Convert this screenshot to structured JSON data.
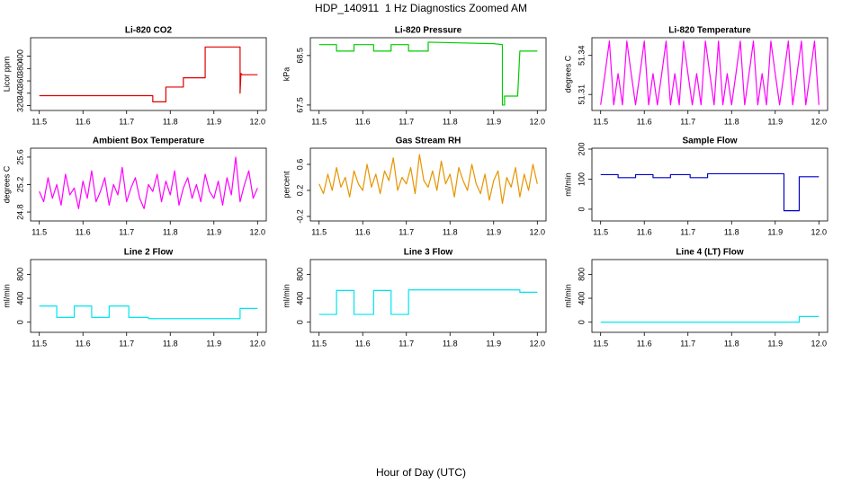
{
  "title": "HDP_140911  1 Hz Diagnostics Zoomed AM",
  "xlabel": "Hour of Day (UTC)",
  "chart_data": [
    {
      "type": "line",
      "title": "Li-820 CO2",
      "ylabel": "Licor ppm",
      "color": "#dd0000",
      "x": [
        11.5,
        11.76,
        11.76,
        11.79,
        11.79,
        11.83,
        11.83,
        11.88,
        11.88,
        11.96,
        11.96,
        11.962,
        11.965,
        12.0
      ],
      "values": [
        336,
        336,
        326,
        326,
        350,
        350,
        365,
        365,
        415,
        415,
        340,
        372,
        370,
        370
      ],
      "xlim": [
        11.48,
        12.02
      ],
      "xticks": [
        11.5,
        11.6,
        11.7,
        11.8,
        11.9,
        {
          "value": 12,
          "label": "12.0"
        }
      ],
      "ylim": [
        312,
        430
      ],
      "yticks": [
        320,
        340,
        360,
        380,
        400
      ]
    },
    {
      "type": "line",
      "title": "Li-820 Pressure",
      "ylabel": "kPa",
      "color": "#00cc00",
      "x": [
        11.5,
        11.54,
        11.54,
        11.58,
        11.58,
        11.625,
        11.625,
        11.665,
        11.665,
        11.705,
        11.705,
        11.75,
        11.75,
        11.9,
        11.92,
        11.92,
        11.925,
        11.925,
        11.955,
        11.96,
        12.0
      ],
      "values": [
        68.72,
        68.72,
        68.59,
        68.59,
        68.72,
        68.72,
        68.59,
        68.59,
        68.72,
        68.72,
        68.59,
        68.59,
        68.77,
        68.74,
        68.72,
        67.5,
        67.5,
        67.68,
        67.68,
        68.59,
        68.59
      ],
      "xlim": [
        11.48,
        12.02
      ],
      "xticks": [
        11.5,
        11.6,
        11.7,
        11.8,
        11.9,
        {
          "value": 12,
          "label": "12.0"
        }
      ],
      "ylim": [
        67.39,
        68.86
      ],
      "yticks": [
        67.5,
        68.5
      ]
    },
    {
      "type": "line",
      "title": "Li-820 Temperature",
      "ylabel": "degrees C",
      "color": "#ff00ff",
      "x": [
        11.5,
        11.51,
        11.52,
        11.53,
        11.54,
        11.55,
        11.56,
        11.57,
        11.58,
        11.59,
        11.6,
        11.61,
        11.62,
        11.63,
        11.64,
        11.65,
        11.66,
        11.67,
        11.68,
        11.69,
        11.7,
        11.71,
        11.72,
        11.73,
        11.74,
        11.75,
        11.76,
        11.77,
        11.78,
        11.79,
        11.8,
        11.81,
        11.82,
        11.83,
        11.84,
        11.85,
        11.86,
        11.87,
        11.88,
        11.89,
        11.9,
        11.91,
        11.92,
        11.93,
        11.94,
        11.95,
        11.96,
        11.97,
        11.98,
        11.99,
        12.0
      ],
      "values": [
        51.302,
        51.326,
        51.351,
        51.302,
        51.326,
        51.302,
        51.351,
        51.326,
        51.302,
        51.326,
        51.351,
        51.302,
        51.326,
        51.302,
        51.326,
        51.351,
        51.302,
        51.326,
        51.302,
        51.351,
        51.326,
        51.302,
        51.326,
        51.302,
        51.351,
        51.326,
        51.302,
        51.351,
        51.302,
        51.326,
        51.302,
        51.326,
        51.351,
        51.302,
        51.326,
        51.351,
        51.302,
        51.326,
        51.302,
        51.351,
        51.326,
        51.302,
        51.326,
        51.351,
        51.302,
        51.326,
        51.351,
        51.302,
        51.326,
        51.351,
        51.302
      ],
      "xlim": [
        11.48,
        12.02
      ],
      "xticks": [
        11.5,
        11.6,
        11.7,
        11.8,
        11.9,
        {
          "value": 12,
          "label": "12.0"
        }
      ],
      "ylim": [
        51.2977,
        51.3536
      ],
      "yticks": [
        51.31,
        51.34
      ]
    },
    {
      "type": "line",
      "title": "Ambient Box Temperature",
      "ylabel": "degrees C",
      "color": "#ff00ff",
      "x": [
        11.5,
        11.51,
        11.52,
        11.53,
        11.54,
        11.55,
        11.56,
        11.57,
        11.58,
        11.59,
        11.6,
        11.61,
        11.62,
        11.63,
        11.64,
        11.65,
        11.66,
        11.67,
        11.68,
        11.69,
        11.7,
        11.71,
        11.72,
        11.73,
        11.74,
        11.75,
        11.76,
        11.77,
        11.78,
        11.79,
        11.8,
        11.81,
        11.82,
        11.83,
        11.84,
        11.85,
        11.86,
        11.87,
        11.88,
        11.89,
        11.9,
        11.91,
        11.92,
        11.93,
        11.94,
        11.95,
        11.96,
        11.97,
        11.98,
        11.99,
        12.0
      ],
      "values": [
        25.1,
        24.95,
        25.3,
        25.0,
        25.2,
        24.9,
        25.35,
        25.05,
        25.15,
        24.85,
        25.25,
        25.0,
        25.4,
        24.95,
        25.1,
        25.3,
        24.9,
        25.2,
        25.05,
        25.45,
        24.95,
        25.15,
        25.3,
        25.0,
        24.85,
        25.2,
        25.1,
        25.35,
        24.95,
        25.25,
        25.05,
        25.4,
        24.9,
        25.15,
        25.3,
        25.0,
        25.2,
        24.95,
        25.35,
        25.1,
        25.0,
        25.25,
        24.9,
        25.3,
        25.05,
        25.6,
        24.95,
        25.2,
        25.4,
        25.0,
        25.15
      ],
      "xlim": [
        11.48,
        12.02
      ],
      "xticks": [
        11.5,
        11.6,
        11.7,
        11.8,
        11.9,
        {
          "value": 12,
          "label": "12.0"
        }
      ],
      "ylim": [
        24.67,
        25.73
      ],
      "yticks": [
        24.8,
        25.2,
        25.6
      ]
    },
    {
      "type": "line",
      "title": "Gas Stream RH",
      "ylabel": "percent",
      "color": "#e69500",
      "x": [
        11.5,
        11.51,
        11.52,
        11.53,
        11.54,
        11.55,
        11.56,
        11.57,
        11.58,
        11.59,
        11.6,
        11.61,
        11.62,
        11.63,
        11.64,
        11.65,
        11.66,
        11.67,
        11.68,
        11.69,
        11.7,
        11.71,
        11.72,
        11.73,
        11.74,
        11.75,
        11.76,
        11.77,
        11.78,
        11.79,
        11.8,
        11.81,
        11.82,
        11.83,
        11.84,
        11.85,
        11.86,
        11.87,
        11.88,
        11.89,
        11.9,
        11.91,
        11.92,
        11.93,
        11.94,
        11.95,
        11.96,
        11.97,
        11.98,
        11.99,
        12.0
      ],
      "values": [
        0.3,
        0.15,
        0.45,
        0.2,
        0.55,
        0.25,
        0.4,
        0.1,
        0.5,
        0.3,
        0.2,
        0.6,
        0.25,
        0.45,
        0.15,
        0.5,
        0.35,
        0.7,
        0.2,
        0.4,
        0.3,
        0.55,
        0.15,
        0.75,
        0.35,
        0.25,
        0.5,
        0.2,
        0.65,
        0.3,
        0.45,
        0.1,
        0.55,
        0.35,
        0.2,
        0.6,
        0.3,
        0.15,
        0.45,
        0.05,
        0.35,
        0.5,
        0.0,
        0.4,
        0.25,
        0.55,
        0.1,
        0.45,
        0.2,
        0.6,
        0.3
      ],
      "xlim": [
        11.48,
        12.02
      ],
      "xticks": [
        11.5,
        11.6,
        11.7,
        11.8,
        11.9,
        {
          "value": 12,
          "label": "12.0"
        }
      ],
      "ylim": [
        -0.269,
        0.848
      ],
      "yticks": [
        -0.2,
        0.2,
        0.6
      ]
    },
    {
      "type": "line",
      "title": "Sample Flow",
      "ylabel": "ml/min",
      "color": "#0000cc",
      "x": [
        11.5,
        11.54,
        11.54,
        11.58,
        11.58,
        11.62,
        11.62,
        11.66,
        11.66,
        11.705,
        11.705,
        11.745,
        11.745,
        11.92,
        11.92,
        11.955,
        11.955,
        12.0
      ],
      "values": [
        115,
        115,
        105,
        105,
        115,
        115,
        105,
        105,
        115,
        115,
        105,
        105,
        118,
        118,
        -5,
        -5,
        108,
        108
      ],
      "xlim": [
        11.48,
        12.02
      ],
      "xticks": [
        11.5,
        11.6,
        11.7,
        11.8,
        11.9,
        {
          "value": 12,
          "label": "12.0"
        }
      ],
      "ylim": [
        -39,
        203
      ],
      "yticks": [
        0,
        100,
        200
      ]
    },
    {
      "type": "line",
      "title": "Line 2 Flow",
      "ylabel": "ml/min",
      "color": "#00e5ee",
      "x": [
        11.5,
        11.54,
        11.54,
        11.58,
        11.58,
        11.62,
        11.62,
        11.66,
        11.66,
        11.705,
        11.705,
        11.75,
        11.75,
        11.96,
        11.96,
        12.0
      ],
      "values": [
        270,
        270,
        80,
        80,
        270,
        270,
        80,
        80,
        270,
        270,
        80,
        80,
        60,
        60,
        230,
        230
      ],
      "xlim": [
        11.48,
        12.02
      ],
      "xticks": [
        11.5,
        11.6,
        11.7,
        11.8,
        11.9,
        {
          "value": 12,
          "label": "12.0"
        }
      ],
      "ylim": [
        -169,
        1046
      ],
      "yticks": [
        0,
        400,
        800
      ]
    },
    {
      "type": "line",
      "title": "Line 3 Flow",
      "ylabel": "ml/min",
      "color": "#00e5ee",
      "x": [
        11.5,
        11.54,
        11.54,
        11.58,
        11.58,
        11.625,
        11.625,
        11.665,
        11.665,
        11.705,
        11.705,
        11.96,
        11.96,
        12.0
      ],
      "values": [
        130,
        130,
        530,
        530,
        130,
        130,
        530,
        530,
        130,
        130,
        540,
        540,
        500,
        500
      ],
      "xlim": [
        11.48,
        12.02
      ],
      "xticks": [
        11.5,
        11.6,
        11.7,
        11.8,
        11.9,
        {
          "value": 12,
          "label": "12.0"
        }
      ],
      "ylim": [
        -169,
        1046
      ],
      "yticks": [
        0,
        400,
        800
      ]
    },
    {
      "type": "line",
      "title": "Line 4 (LT) Flow",
      "ylabel": "ml/min",
      "color": "#00e5ee",
      "x": [
        11.5,
        11.955,
        11.955,
        12.0
      ],
      "values": [
        0,
        0,
        95,
        95
      ],
      "xlim": [
        11.48,
        12.02
      ],
      "xticks": [
        11.5,
        11.6,
        11.7,
        11.8,
        11.9,
        {
          "value": 12,
          "label": "12.0"
        }
      ],
      "ylim": [
        -169,
        1046
      ],
      "yticks": [
        0,
        400,
        800
      ]
    }
  ]
}
